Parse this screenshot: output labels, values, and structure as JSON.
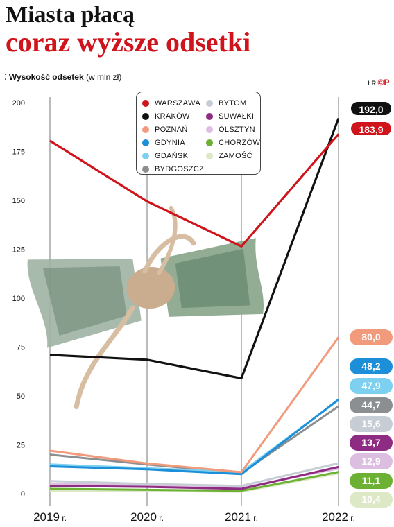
{
  "title_line1": "Miasta płacą",
  "title_line2": "coraz wyższe odsetki",
  "subtitle_bold": "Wysokość odsetek",
  "subtitle_unit": "(w mln zł)",
  "logo_text": "ŁR",
  "logo_mark": "©P",
  "accent_color": "#d0141b",
  "chart_data": {
    "type": "line",
    "title": "coraz wyższe odsetki",
    "ylabel": "Wysokość odsetek (w mln zł)",
    "xlabel": "",
    "categories": [
      "2019 r.",
      "2020 r.",
      "2021 r.",
      "2022 r."
    ],
    "ylim": [
      0,
      200
    ],
    "yticks": [
      "0",
      "25",
      "50",
      "75",
      "100",
      "125",
      "150",
      "175",
      "200"
    ],
    "grid": "vertical",
    "legend_position": "top-center",
    "series": [
      {
        "name": "WARSZAWA",
        "color": "#d0141b",
        "values": [
          180.5,
          149.5,
          126.5,
          183.9
        ],
        "end_label": "183,9"
      },
      {
        "name": "KRAKÓW",
        "color": "#111111",
        "values": [
          71,
          68.5,
          59,
          192.0
        ],
        "end_label": "192,0"
      },
      {
        "name": "POZNAŃ",
        "color": "#f19a7c",
        "values": [
          22,
          15.5,
          11,
          80.0
        ],
        "end_label": "80,0"
      },
      {
        "name": "GDYNIA",
        "color": "#1d8fd8",
        "values": [
          14,
          12.5,
          10,
          48.2
        ],
        "end_label": "48,2"
      },
      {
        "name": "GDAŃSK",
        "color": "#7dd0f0",
        "values": [
          15,
          13,
          11,
          47.9
        ],
        "end_label": "47,9"
      },
      {
        "name": "BYDGOSZCZ",
        "color": "#8c8f92",
        "values": [
          20,
          15,
          10.5,
          44.7
        ],
        "end_label": "44,7"
      },
      {
        "name": "BYTOM",
        "color": "#c6cdd5",
        "values": [
          6.5,
          5,
          4,
          15.6
        ],
        "end_label": "15,6"
      },
      {
        "name": "SUWAŁKI",
        "color": "#8e2b83",
        "values": [
          4,
          3.5,
          2.5,
          13.7
        ],
        "end_label": "13,7"
      },
      {
        "name": "OLSZTYN",
        "color": "#dcbfe0",
        "values": [
          5,
          4.5,
          3,
          12.9
        ],
        "end_label": "12,9"
      },
      {
        "name": "CHORZÓW",
        "color": "#6cb134",
        "values": [
          2.5,
          2,
          1.5,
          11.1
        ],
        "end_label": "11,1"
      },
      {
        "name": "ZAMOŚĆ",
        "color": "#dde8c6",
        "values": [
          1.5,
          1.5,
          1,
          10.4
        ],
        "end_label": "10,4"
      }
    ]
  }
}
